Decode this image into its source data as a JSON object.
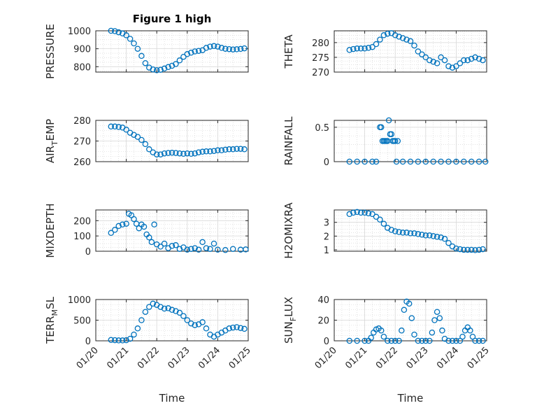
{
  "figure": {
    "title": "Figure 1 high",
    "marker_color": "#0072BD"
  },
  "chart_data": [
    {
      "type": "scatter",
      "id": "pressure",
      "title": "Figure 1 high",
      "ylabel": "PRESSURE",
      "xlabel": "",
      "x_type": "date",
      "xlim": [
        "01/20",
        "01/25"
      ],
      "ylim": [
        770,
        1000
      ],
      "yticks": [
        800,
        900,
        1000
      ],
      "ytick_labels": [
        "800",
        "900",
        "1000"
      ],
      "show_xticks": false,
      "grid": true,
      "x": [
        "01/20 12:00",
        "01/20 15:00",
        "01/20 18:00",
        "01/20 21:00",
        "01/21 00:00",
        "01/21 03:00",
        "01/21 06:00",
        "01/21 09:00",
        "01/21 12:00",
        "01/21 15:00",
        "01/21 18:00",
        "01/21 21:00",
        "01/22 00:00",
        "01/22 03:00",
        "01/22 06:00",
        "01/22 09:00",
        "01/22 12:00",
        "01/22 15:00",
        "01/22 18:00",
        "01/22 21:00",
        "01/23 00:00",
        "01/23 03:00",
        "01/23 06:00",
        "01/23 09:00",
        "01/23 12:00",
        "01/23 15:00",
        "01/23 18:00",
        "01/23 21:00",
        "01/24 00:00",
        "01/24 03:00",
        "01/24 06:00",
        "01/24 09:00",
        "01/24 12:00",
        "01/24 15:00",
        "01/24 18:00",
        "01/24 21:00"
      ],
      "y": [
        1000,
        998,
        992,
        985,
        975,
        955,
        930,
        900,
        860,
        820,
        795,
        785,
        780,
        783,
        790,
        798,
        805,
        815,
        835,
        855,
        870,
        878,
        885,
        888,
        892,
        905,
        912,
        915,
        912,
        905,
        900,
        898,
        896,
        897,
        899,
        902
      ]
    },
    {
      "type": "scatter",
      "id": "theta",
      "title": "",
      "ylabel": "THETA",
      "xlabel": "",
      "x_type": "date",
      "xlim": [
        "01/20",
        "01/25"
      ],
      "ylim": [
        270,
        284
      ],
      "yticks": [
        270,
        275,
        280
      ],
      "ytick_labels": [
        "270",
        "275",
        "280"
      ],
      "show_xticks": false,
      "grid": true,
      "x": [
        "01/20 12:00",
        "01/20 15:00",
        "01/20 18:00",
        "01/20 21:00",
        "01/21 00:00",
        "01/21 03:00",
        "01/21 06:00",
        "01/21 09:00",
        "01/21 12:00",
        "01/21 15:00",
        "01/21 18:00",
        "01/21 21:00",
        "01/22 00:00",
        "01/22 03:00",
        "01/22 06:00",
        "01/22 09:00",
        "01/22 12:00",
        "01/22 15:00",
        "01/22 18:00",
        "01/22 21:00",
        "01/23 00:00",
        "01/23 03:00",
        "01/23 06:00",
        "01/23 09:00",
        "01/23 12:00",
        "01/23 15:00",
        "01/23 18:00",
        "01/23 21:00",
        "01/24 00:00",
        "01/24 03:00",
        "01/24 06:00",
        "01/24 09:00",
        "01/24 12:00",
        "01/24 15:00",
        "01/24 18:00",
        "01/24 21:00"
      ],
      "y": [
        277.5,
        277.8,
        278,
        278,
        278,
        278.2,
        278.5,
        279.5,
        281,
        282.5,
        283,
        283.2,
        282.5,
        282,
        281.5,
        281,
        280.5,
        279,
        277,
        276,
        275,
        274,
        273.5,
        273,
        275,
        274,
        272,
        271.5,
        272,
        273,
        274,
        274,
        274.5,
        275,
        274.5,
        274
      ]
    },
    {
      "type": "scatter",
      "id": "air_temp",
      "title": "",
      "ylabel": "AIR_TEMP",
      "ylabel_parts": [
        "AIR",
        "T",
        "EMP"
      ],
      "xlabel": "",
      "x_type": "date",
      "xlim": [
        "01/20",
        "01/25"
      ],
      "ylim": [
        260,
        280
      ],
      "yticks": [
        260,
        270,
        280
      ],
      "ytick_labels": [
        "260",
        "270",
        "280"
      ],
      "show_xticks": false,
      "grid": true,
      "x": [
        "01/20 12:00",
        "01/20 15:00",
        "01/20 18:00",
        "01/20 21:00",
        "01/21 00:00",
        "01/21 03:00",
        "01/21 06:00",
        "01/21 09:00",
        "01/21 12:00",
        "01/21 15:00",
        "01/21 18:00",
        "01/21 21:00",
        "01/22 00:00",
        "01/22 03:00",
        "01/22 06:00",
        "01/22 09:00",
        "01/22 12:00",
        "01/22 15:00",
        "01/22 18:00",
        "01/22 21:00",
        "01/23 00:00",
        "01/23 03:00",
        "01/23 06:00",
        "01/23 09:00",
        "01/23 12:00",
        "01/23 15:00",
        "01/23 18:00",
        "01/23 21:00",
        "01/24 00:00",
        "01/24 03:00",
        "01/24 06:00",
        "01/24 09:00",
        "01/24 12:00",
        "01/24 15:00",
        "01/24 18:00",
        "01/24 21:00"
      ],
      "y": [
        277,
        277,
        276.8,
        276.5,
        275.5,
        274,
        273,
        272,
        270.5,
        268.5,
        266,
        264.5,
        263.5,
        263.5,
        264,
        264.2,
        264.3,
        264.2,
        264,
        263.8,
        264,
        263.8,
        264,
        264.5,
        264.8,
        265,
        265,
        265.2,
        265.5,
        265.5,
        265.8,
        266,
        266,
        266.2,
        266.2,
        266
      ]
    },
    {
      "type": "scatter",
      "id": "rainfall",
      "title": "",
      "ylabel": "RAINFALL",
      "xlabel": "",
      "x_type": "date",
      "xlim": [
        "01/20",
        "01/25"
      ],
      "ylim": [
        0,
        0.6
      ],
      "yticks": [
        0,
        0.5
      ],
      "ytick_labels": [
        "0",
        "0.5"
      ],
      "show_xticks": false,
      "grid": true,
      "x": [
        "01/20 12:00",
        "01/20 18:00",
        "01/21 00:00",
        "01/21 06:00",
        "01/21 09:00",
        "01/21 12:00",
        "01/21 13:00",
        "01/21 14:00",
        "01/21 15:00",
        "01/21 16:00",
        "01/21 17:00",
        "01/21 18:00",
        "01/21 19:00",
        "01/21 20:00",
        "01/21 21:00",
        "01/21 22:00",
        "01/21 23:00",
        "01/22 00:00",
        "01/22 01:00",
        "01/22 02:00",
        "01/22 06:00",
        "01/22 12:00",
        "01/22 18:00",
        "01/23 00:00",
        "01/23 06:00",
        "01/23 12:00",
        "01/23 18:00",
        "01/24 00:00",
        "01/24 06:00",
        "01/24 12:00",
        "01/24 18:00",
        "01/24 23:00"
      ],
      "y": [
        0,
        0,
        0,
        0,
        0,
        0.5,
        0.5,
        0.3,
        0.3,
        0.3,
        0.3,
        0.3,
        0.6,
        0.4,
        0.4,
        0.3,
        0.3,
        0.3,
        0,
        0.3,
        0,
        0,
        0,
        0,
        0,
        0,
        0,
        0,
        0,
        0,
        0,
        0
      ]
    },
    {
      "type": "scatter",
      "id": "mixdepth",
      "title": "",
      "ylabel": "MIXDEPTH",
      "xlabel": "",
      "x_type": "date",
      "xlim": [
        "01/20",
        "01/25"
      ],
      "ylim": [
        0,
        270
      ],
      "yticks": [
        0,
        100,
        200
      ],
      "ytick_labels": [
        "0",
        "100",
        "200"
      ],
      "show_xticks": false,
      "grid": true,
      "x": [
        "01/20 12:00",
        "01/20 15:00",
        "01/20 18:00",
        "01/20 21:00",
        "01/21 00:00",
        "01/21 02:00",
        "01/21 04:00",
        "01/21 06:00",
        "01/21 08:00",
        "01/21 10:00",
        "01/21 12:00",
        "01/21 14:00",
        "01/21 16:00",
        "01/21 18:00",
        "01/21 20:00",
        "01/21 22:00",
        "01/22 00:00",
        "01/22 03:00",
        "01/22 06:00",
        "01/22 09:00",
        "01/22 12:00",
        "01/22 15:00",
        "01/22 18:00",
        "01/22 21:00",
        "01/23 00:00",
        "01/23 03:00",
        "01/23 06:00",
        "01/23 09:00",
        "01/23 12:00",
        "01/23 15:00",
        "01/23 18:00",
        "01/23 21:00",
        "01/24 00:00",
        "01/24 06:00",
        "01/24 12:00",
        "01/24 18:00",
        "01/24 22:00"
      ],
      "y": [
        120,
        140,
        165,
        175,
        180,
        245,
        235,
        210,
        180,
        150,
        175,
        160,
        110,
        90,
        60,
        175,
        45,
        30,
        50,
        20,
        35,
        40,
        15,
        25,
        10,
        15,
        20,
        10,
        60,
        20,
        15,
        50,
        10,
        8,
        15,
        10,
        12
      ]
    },
    {
      "type": "scatter",
      "id": "h2omixra",
      "title": "",
      "ylabel": "H2OMIXRA",
      "xlabel": "",
      "x_type": "date",
      "xlim": [
        "01/20",
        "01/25"
      ],
      "ylim": [
        0.9,
        3.9
      ],
      "yticks": [
        1,
        2,
        3
      ],
      "ytick_labels": [
        "1",
        "2",
        "3"
      ],
      "show_xticks": false,
      "grid": true,
      "x": [
        "01/20 12:00",
        "01/20 15:00",
        "01/20 18:00",
        "01/20 21:00",
        "01/21 00:00",
        "01/21 03:00",
        "01/21 06:00",
        "01/21 09:00",
        "01/21 12:00",
        "01/21 15:00",
        "01/21 18:00",
        "01/21 21:00",
        "01/22 00:00",
        "01/22 03:00",
        "01/22 06:00",
        "01/22 09:00",
        "01/22 12:00",
        "01/22 15:00",
        "01/22 18:00",
        "01/22 21:00",
        "01/23 00:00",
        "01/23 03:00",
        "01/23 06:00",
        "01/23 09:00",
        "01/23 12:00",
        "01/23 15:00",
        "01/23 18:00",
        "01/23 21:00",
        "01/24 00:00",
        "01/24 03:00",
        "01/24 06:00",
        "01/24 09:00",
        "01/24 12:00",
        "01/24 15:00",
        "01/24 18:00",
        "01/24 21:00"
      ],
      "y": [
        3.6,
        3.7,
        3.75,
        3.7,
        3.7,
        3.65,
        3.6,
        3.4,
        3.2,
        2.9,
        2.6,
        2.45,
        2.35,
        2.3,
        2.25,
        2.25,
        2.2,
        2.2,
        2.15,
        2.1,
        2.05,
        2.05,
        2.0,
        1.95,
        1.9,
        1.8,
        1.5,
        1.25,
        1.1,
        1.05,
        1.0,
        1.0,
        1.0,
        0.98,
        1.0,
        1.05
      ]
    },
    {
      "type": "scatter",
      "id": "terr_msl",
      "title": "",
      "ylabel": "TERR_MSL",
      "ylabel_parts": [
        "TERR",
        "M",
        "SL"
      ],
      "xlabel": "Time",
      "x_type": "date",
      "xlim": [
        "01/20",
        "01/25"
      ],
      "ylim": [
        0,
        1000
      ],
      "yticks": [
        0,
        500,
        1000
      ],
      "ytick_labels": [
        "0",
        "500",
        "1000"
      ],
      "xticks": [
        "01/20",
        "01/21",
        "01/22",
        "01/23",
        "01/24",
        "01/25"
      ],
      "show_xticks": true,
      "grid": true,
      "x": [
        "01/20 12:00",
        "01/20 15:00",
        "01/20 18:00",
        "01/20 21:00",
        "01/21 00:00",
        "01/21 03:00",
        "01/21 06:00",
        "01/21 09:00",
        "01/21 12:00",
        "01/21 15:00",
        "01/21 18:00",
        "01/21 21:00",
        "01/22 00:00",
        "01/22 03:00",
        "01/22 06:00",
        "01/22 09:00",
        "01/22 12:00",
        "01/22 15:00",
        "01/22 18:00",
        "01/22 21:00",
        "01/23 00:00",
        "01/23 03:00",
        "01/23 06:00",
        "01/23 09:00",
        "01/23 12:00",
        "01/23 15:00",
        "01/23 18:00",
        "01/23 21:00",
        "01/24 00:00",
        "01/24 03:00",
        "01/24 06:00",
        "01/24 09:00",
        "01/24 12:00",
        "01/24 15:00",
        "01/24 18:00",
        "01/24 21:00"
      ],
      "y": [
        20,
        15,
        10,
        10,
        15,
        50,
        150,
        300,
        500,
        700,
        820,
        900,
        870,
        820,
        780,
        790,
        750,
        720,
        680,
        600,
        500,
        420,
        380,
        400,
        450,
        300,
        150,
        100,
        150,
        200,
        250,
        300,
        320,
        330,
        310,
        290
      ]
    },
    {
      "type": "scatter",
      "id": "sun_flux",
      "title": "",
      "ylabel": "SUN_FLUX",
      "ylabel_parts": [
        "SUN",
        "F",
        "LUX"
      ],
      "xlabel": "Time",
      "x_type": "date",
      "xlim": [
        "01/20",
        "01/25"
      ],
      "ylim": [
        0,
        40
      ],
      "yticks": [
        0,
        20,
        40
      ],
      "ytick_labels": [
        "0",
        "20",
        "40"
      ],
      "xticks": [
        "01/20",
        "01/21",
        "01/22",
        "01/23",
        "01/24",
        "01/25"
      ],
      "show_xticks": true,
      "grid": true,
      "x": [
        "01/20 12:00",
        "01/20 18:00",
        "01/21 00:00",
        "01/21 03:00",
        "01/21 05:00",
        "01/21 07:00",
        "01/21 09:00",
        "01/21 11:00",
        "01/21 13:00",
        "01/21 15:00",
        "01/21 18:00",
        "01/21 21:00",
        "01/22 00:00",
        "01/22 03:00",
        "01/22 05:00",
        "01/22 07:00",
        "01/22 09:00",
        "01/22 11:00",
        "01/22 13:00",
        "01/22 15:00",
        "01/22 18:00",
        "01/22 21:00",
        "01/23 00:00",
        "01/23 03:00",
        "01/23 05:00",
        "01/23 07:00",
        "01/23 09:00",
        "01/23 11:00",
        "01/23 13:00",
        "01/23 15:00",
        "01/23 18:00",
        "01/23 21:00",
        "01/24 00:00",
        "01/24 03:00",
        "01/24 05:00",
        "01/24 07:00",
        "01/24 09:00",
        "01/24 11:00",
        "01/24 13:00",
        "01/24 15:00",
        "01/24 18:00",
        "01/24 21:00"
      ],
      "y": [
        0,
        0,
        0,
        0,
        3,
        8,
        11,
        12,
        10,
        4,
        0,
        0,
        0,
        0,
        10,
        30,
        38,
        36,
        22,
        6,
        0,
        0,
        0,
        0,
        8,
        20,
        28,
        22,
        10,
        2,
        0,
        0,
        0,
        0,
        4,
        10,
        13,
        10,
        4,
        0,
        0,
        0
      ]
    }
  ]
}
